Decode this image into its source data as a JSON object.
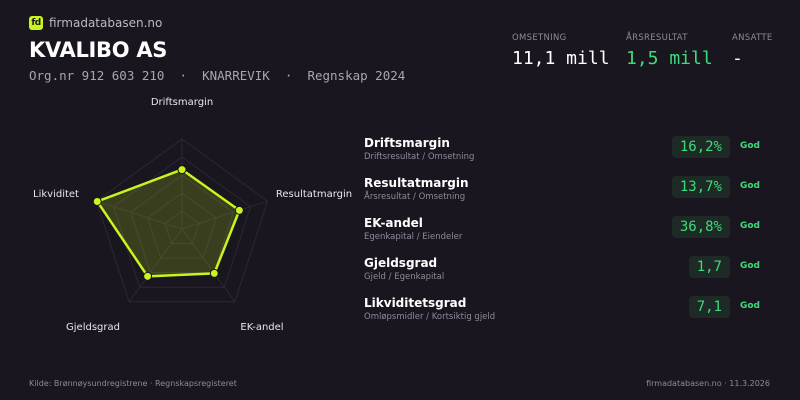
{
  "brand": {
    "logo": "fd",
    "name": "firmadatabasen.no"
  },
  "company": {
    "name": "KVALIBO AS",
    "subtitle": "Org.nr 912 603 210  ·  KNARREVIK  ·  Regnskap 2024"
  },
  "kpis": [
    {
      "label": "OMSETNING",
      "value": "11,1 mill",
      "color": "#ffffff"
    },
    {
      "label": "ÅRSRESULTAT",
      "value": "1,5 mill",
      "color": "#3ddc7a"
    },
    {
      "label": "ANSATTE",
      "value": "-",
      "color": "#ffffff"
    }
  ],
  "chart_data": {
    "type": "radar",
    "axes": [
      "Driftsmargin",
      "Resultatmargin",
      "EK-andel",
      "Gjeldsgrad",
      "Likviditet"
    ],
    "values": [
      0.66,
      0.67,
      0.61,
      0.65,
      0.99
    ],
    "range": [
      0,
      1
    ],
    "rings": 5,
    "color": "#c8f51e"
  },
  "metrics": [
    {
      "name": "Driftsmargin",
      "desc": "Driftsresultat / Omsetning",
      "value": "16,2%",
      "status": "God"
    },
    {
      "name": "Resultatmargin",
      "desc": "Årsresultat / Omsetning",
      "value": "13,7%",
      "status": "God"
    },
    {
      "name": "EK-andel",
      "desc": "Egenkapital / Eiendeler",
      "value": "36,8%",
      "status": "God"
    },
    {
      "name": "Gjeldsgrad",
      "desc": "Gjeld / Egenkapital",
      "value": "1,7",
      "status": "God"
    },
    {
      "name": "Likviditetsgrad",
      "desc": "Omløpsmidler / Kortsiktig gjeld",
      "value": "7,1",
      "status": "God"
    }
  ],
  "footer": {
    "source": "Kilde: Brønnøysundregistrene · Regnskapsregisteret",
    "site": "firmadatabasen.no · 11.3.2026"
  }
}
